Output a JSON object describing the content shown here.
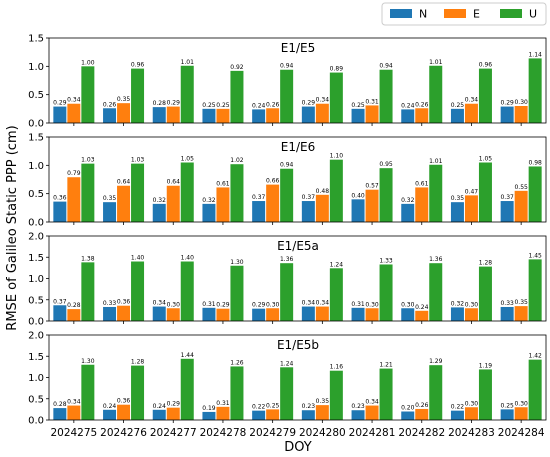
{
  "colors": {
    "N": "#1f77b4",
    "E": "#ff7f0e",
    "U": "#2ca02c"
  },
  "legend": [
    {
      "key": "N",
      "label": "N"
    },
    {
      "key": "E",
      "label": "E"
    },
    {
      "key": "U",
      "label": "U"
    }
  ],
  "xlabel": "DOY",
  "ylabel": "RMSE of Galileo Static PPP (cm)",
  "chart_data": [
    {
      "type": "bar",
      "title": "E1/E5",
      "categories": [
        "2024275",
        "2024276",
        "2024277",
        "2024278",
        "2024279",
        "2024280",
        "2024281",
        "2024282",
        "2024283",
        "2024284"
      ],
      "ylim": [
        0,
        1.5
      ],
      "yticks": [
        "0.0",
        "0.5",
        "1.0",
        "1.5"
      ],
      "series": [
        {
          "name": "N",
          "values": [
            0.29,
            0.26,
            0.28,
            0.25,
            0.24,
            0.29,
            0.25,
            0.24,
            0.25,
            0.29
          ],
          "labels": [
            "0.29",
            "0.26",
            "0.28",
            "0.25",
            "0.24",
            "0.29",
            "0.25",
            "0.24",
            "0.25",
            "0.29"
          ]
        },
        {
          "name": "E",
          "values": [
            0.34,
            0.35,
            0.29,
            0.25,
            0.26,
            0.34,
            0.31,
            0.26,
            0.34,
            0.3
          ],
          "labels": [
            "0.34",
            "0.35",
            "0.29",
            "0.25",
            "0.26",
            "0.34",
            "0.31",
            "0.26",
            "0.34",
            "0.30"
          ]
        },
        {
          "name": "U",
          "values": [
            1.0,
            0.96,
            1.01,
            0.92,
            0.94,
            0.89,
            0.94,
            1.01,
            0.96,
            1.14
          ],
          "labels": [
            "1.00",
            "0.96",
            "1.01",
            "0.92",
            "0.94",
            "0.89",
            "0.94",
            "1.01",
            "0.96",
            "1.14"
          ]
        }
      ]
    },
    {
      "type": "bar",
      "title": "E1/E6",
      "categories": [
        "2024275",
        "2024276",
        "2024277",
        "2024278",
        "2024279",
        "2024280",
        "2024281",
        "2024282",
        "2024283",
        "2024284"
      ],
      "ylim": [
        0,
        1.5
      ],
      "yticks": [
        "0.0",
        "0.5",
        "1.0",
        "1.5"
      ],
      "series": [
        {
          "name": "N",
          "values": [
            0.36,
            0.35,
            0.32,
            0.32,
            0.37,
            0.37,
            0.4,
            0.32,
            0.35,
            0.37
          ],
          "labels": [
            "0.36",
            "0.35",
            "0.32",
            "0.32",
            "0.37",
            "0.37",
            "0.40",
            "0.32",
            "0.35",
            "0.37"
          ]
        },
        {
          "name": "E",
          "values": [
            0.79,
            0.64,
            0.64,
            0.61,
            0.66,
            0.48,
            0.57,
            0.61,
            0.47,
            0.55
          ],
          "labels": [
            "0.79",
            "0.64",
            "0.64",
            "0.61",
            "0.66",
            "0.48",
            "0.57",
            "0.61",
            "0.47",
            "0.55"
          ]
        },
        {
          "name": "U",
          "values": [
            1.03,
            1.03,
            1.05,
            1.02,
            0.94,
            1.1,
            0.95,
            1.01,
            1.05,
            0.98
          ],
          "labels": [
            "1.03",
            "1.03",
            "1.05",
            "1.02",
            "0.94",
            "1.10",
            "0.95",
            "1.01",
            "1.05",
            "0.98"
          ]
        }
      ]
    },
    {
      "type": "bar",
      "title": "E1/E5a",
      "categories": [
        "2024275",
        "2024276",
        "2024277",
        "2024278",
        "2024279",
        "2024280",
        "2024281",
        "2024282",
        "2024283",
        "2024284"
      ],
      "ylim": [
        0,
        2.0
      ],
      "yticks": [
        "0.0",
        "0.5",
        "1.0",
        "1.5",
        "2.0"
      ],
      "series": [
        {
          "name": "N",
          "values": [
            0.37,
            0.33,
            0.34,
            0.31,
            0.29,
            0.34,
            0.31,
            0.3,
            0.32,
            0.33
          ],
          "labels": [
            "0.37",
            "0.33",
            "0.34",
            "0.31",
            "0.29",
            "0.34",
            "0.31",
            "0.30",
            "0.32",
            "0.33"
          ]
        },
        {
          "name": "E",
          "values": [
            0.28,
            0.36,
            0.3,
            0.29,
            0.3,
            0.34,
            0.3,
            0.24,
            0.3,
            0.35
          ],
          "labels": [
            "0.28",
            "0.36",
            "0.30",
            "0.29",
            "0.30",
            "0.34",
            "0.30",
            "0.24",
            "0.30",
            "0.35"
          ]
        },
        {
          "name": "U",
          "values": [
            1.38,
            1.4,
            1.4,
            1.3,
            1.36,
            1.24,
            1.33,
            1.36,
            1.28,
            1.45
          ],
          "labels": [
            "1.38",
            "1.40",
            "1.40",
            "1.30",
            "1.36",
            "1.24",
            "1.33",
            "1.36",
            "1.28",
            "1.45"
          ]
        }
      ]
    },
    {
      "type": "bar",
      "title": "E1/E5b",
      "categories": [
        "2024275",
        "2024276",
        "2024277",
        "2024278",
        "2024279",
        "2024280",
        "2024281",
        "2024282",
        "2024283",
        "2024284"
      ],
      "ylim": [
        0,
        2.0
      ],
      "yticks": [
        "0.0",
        "0.5",
        "1.0",
        "1.5",
        "2.0"
      ],
      "series": [
        {
          "name": "N",
          "values": [
            0.28,
            0.24,
            0.24,
            0.19,
            0.22,
            0.23,
            0.23,
            0.2,
            0.22,
            0.25
          ],
          "labels": [
            "0.28",
            "0.24",
            "0.24",
            "0.19",
            "0.22",
            "0.23",
            "0.23",
            "0.20",
            "0.22",
            "0.25"
          ]
        },
        {
          "name": "E",
          "values": [
            0.34,
            0.36,
            0.29,
            0.31,
            0.25,
            0.35,
            0.34,
            0.26,
            0.3,
            0.3
          ],
          "labels": [
            "0.34",
            "0.36",
            "0.29",
            "0.31",
            "0.25",
            "0.35",
            "0.34",
            "0.26",
            "0.30",
            "0.30"
          ]
        },
        {
          "name": "U",
          "values": [
            1.3,
            1.28,
            1.44,
            1.26,
            1.24,
            1.16,
            1.21,
            1.29,
            1.19,
            1.42
          ],
          "labels": [
            "1.30",
            "1.28",
            "1.44",
            "1.26",
            "1.24",
            "1.16",
            "1.21",
            "1.29",
            "1.19",
            "1.42"
          ]
        }
      ]
    }
  ]
}
